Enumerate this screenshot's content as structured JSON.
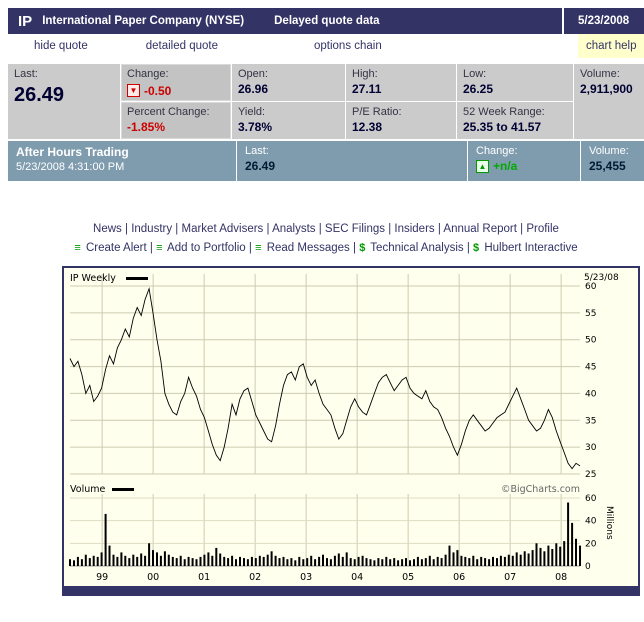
{
  "colors": {
    "navy": "#333366",
    "red": "#cc0000",
    "green": "#009900",
    "quote_bg": "#cbcbcb",
    "after_hours_bg": "#7f9cae",
    "chart_bg": "#ffffee",
    "help_bg": "#ffffcc"
  },
  "header": {
    "symbol": "IP",
    "company": "International Paper Company (NYSE)",
    "note": "Delayed quote data",
    "date": "5/23/2008"
  },
  "nav": {
    "hide_quote": "hide quote",
    "detailed_quote": "detailed quote",
    "options_chain": "options chain",
    "chart_help": "chart help"
  },
  "quote": {
    "last_label": "Last:",
    "last": "26.49",
    "change_label": "Change:",
    "change": "-0.50",
    "change_icon": "▼",
    "percent_change_label": "Percent Change:",
    "percent_change": "-1.85%",
    "open_label": "Open:",
    "open": "26.96",
    "yield_label": "Yield:",
    "yield": "3.78%",
    "high_label": "High:",
    "high": "27.11",
    "pe_label": "P/E Ratio:",
    "pe": "12.38",
    "low_label": "Low:",
    "low": "26.25",
    "week52_label": "52 Week Range:",
    "week52": "25.35 to 41.57",
    "volume_label": "Volume:",
    "volume": "2,911,900"
  },
  "after_hours": {
    "title": "After Hours Trading",
    "timestamp": "5/23/2008 4:31:00 PM",
    "last_label": "Last:",
    "last": "26.49",
    "change_label": "Change:",
    "change": "+n/a",
    "change_icon": "▲",
    "volume_label": "Volume:",
    "volume": "25,455"
  },
  "links": {
    "separator": " | ",
    "row1": [
      "News",
      "Industry",
      "Market Advisers",
      "Analysts",
      "SEC Filings",
      "Insiders",
      "Annual Report",
      "Profile"
    ],
    "row2": [
      {
        "icon": "≡",
        "icon_name": "alert-list-icon",
        "label": "Create Alert"
      },
      {
        "icon": "≡",
        "icon_name": "portfolio-list-icon",
        "label": "Add to Portfolio"
      },
      {
        "icon": "≡",
        "icon_name": "messages-list-icon",
        "label": "Read Messages"
      },
      {
        "icon": "$",
        "icon_name": "dollar-icon",
        "label": "Technical Analysis"
      },
      {
        "icon": "$",
        "icon_name": "dollar-icon",
        "label": "Hulbert Interactive"
      }
    ]
  },
  "chart_data": {
    "type": "line+bar",
    "title": "IP Weekly",
    "asof": "5/23/08",
    "watermark": "©BigCharts.com",
    "volume_label": "Volume",
    "x_years": [
      "99",
      "00",
      "01",
      "02",
      "03",
      "04",
      "05",
      "06",
      "07",
      "08"
    ],
    "price": {
      "ylim": [
        25,
        60
      ],
      "ticks": [
        60,
        55,
        50,
        45,
        40,
        35,
        30,
        25
      ],
      "values": [
        46.5,
        45.0,
        46.0,
        43.5,
        40.0,
        41.5,
        38.5,
        39.5,
        41.0,
        44.5,
        47.0,
        45.5,
        48.5,
        50.0,
        52.0,
        50.5,
        54.0,
        56.0,
        54.5,
        57.5,
        59.5,
        55.0,
        50.0,
        46.0,
        40.0,
        38.0,
        36.5,
        36.0,
        38.5,
        40.0,
        43.0,
        41.0,
        39.5,
        37.0,
        35.5,
        33.0,
        30.5,
        28.5,
        27.5,
        30.0,
        33.5,
        38.0,
        36.0,
        39.0,
        40.5,
        41.0,
        38.5,
        36.0,
        34.5,
        33.0,
        31.5,
        31.0,
        34.0,
        38.0,
        41.5,
        43.5,
        44.0,
        42.5,
        45.0,
        45.5,
        43.0,
        41.5,
        42.5,
        40.0,
        38.0,
        37.0,
        36.0,
        33.5,
        31.5,
        32.5,
        35.0,
        37.5,
        39.0,
        37.5,
        36.5,
        36.0,
        38.0,
        40.0,
        42.0,
        43.0,
        43.5,
        42.0,
        40.5,
        41.5,
        42.5,
        43.0,
        41.0,
        40.0,
        39.5,
        39.0,
        40.5,
        38.5,
        37.5,
        37.0,
        35.5,
        33.5,
        32.0,
        30.0,
        28.5,
        30.5,
        33.0,
        35.0,
        36.0,
        35.0,
        34.0,
        33.0,
        33.5,
        34.5,
        35.5,
        36.0,
        36.5,
        38.0,
        39.5,
        41.0,
        39.0,
        37.0,
        35.0,
        34.0,
        33.0,
        33.5,
        35.0,
        37.0,
        35.5,
        33.0,
        31.0,
        29.0,
        27.0,
        26.0,
        27.0,
        26.5
      ]
    },
    "volume": {
      "unit": "Millions",
      "ylim": [
        0,
        60
      ],
      "ticks": [
        60,
        40,
        20,
        0
      ],
      "values": [
        6,
        5,
        8,
        6,
        10,
        7,
        9,
        8,
        12,
        46,
        18,
        10,
        8,
        12,
        9,
        7,
        10,
        8,
        11,
        9,
        20,
        14,
        12,
        9,
        13,
        10,
        8,
        7,
        9,
        6,
        8,
        7,
        6,
        8,
        10,
        12,
        9,
        16,
        11,
        8,
        7,
        9,
        6,
        8,
        7,
        6,
        8,
        7,
        9,
        8,
        10,
        13,
        9,
        7,
        8,
        6,
        7,
        5,
        8,
        6,
        7,
        9,
        6,
        8,
        10,
        7,
        6,
        9,
        11,
        8,
        12,
        7,
        6,
        8,
        9,
        7,
        6,
        5,
        7,
        6,
        8,
        6,
        7,
        5,
        6,
        7,
        5,
        6,
        8,
        6,
        7,
        9,
        6,
        8,
        7,
        10,
        18,
        12,
        14,
        9,
        8,
        7,
        9,
        6,
        8,
        7,
        6,
        8,
        7,
        9,
        8,
        10,
        9,
        12,
        10,
        13,
        11,
        14,
        20,
        16,
        13,
        18,
        15,
        20,
        17,
        22,
        56,
        38,
        24,
        18
      ]
    }
  }
}
